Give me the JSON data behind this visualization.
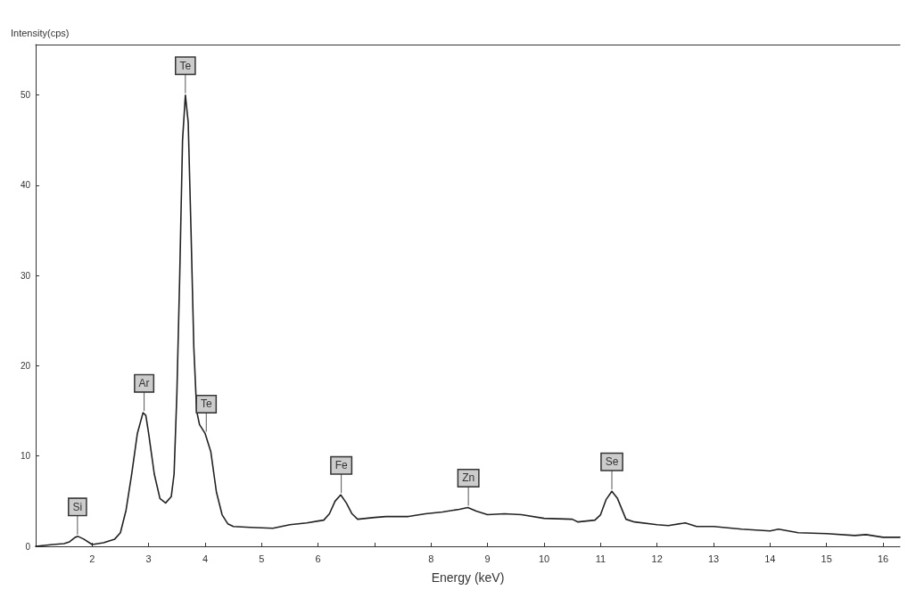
{
  "chart_data": {
    "type": "line",
    "xlabel": "Energy (keV)",
    "ylabel": "Intensity(cps)",
    "xlim": [
      1,
      16.3
    ],
    "xticks": [
      2,
      3,
      4,
      5,
      6,
      {
        "value": 7,
        "label": null
      },
      8,
      9,
      10,
      11,
      12,
      13,
      14,
      15,
      16
    ],
    "ylim": [
      0,
      55.6
    ],
    "yticks": [
      0,
      10,
      20,
      30,
      40,
      50
    ],
    "grid": false,
    "marker": "none",
    "line_style": "solid",
    "x": [
      1.0,
      1.3,
      1.5,
      1.6,
      1.7,
      1.75,
      1.85,
      2.0,
      2.2,
      2.4,
      2.5,
      2.6,
      2.7,
      2.8,
      2.9,
      2.95,
      3.0,
      3.1,
      3.2,
      3.3,
      3.4,
      3.45,
      3.5,
      3.55,
      3.6,
      3.65,
      3.7,
      3.75,
      3.8,
      3.85,
      3.9,
      4.0,
      4.1,
      4.2,
      4.3,
      4.4,
      4.5,
      4.8,
      5.2,
      5.5,
      5.8,
      6.0,
      6.1,
      6.2,
      6.3,
      6.4,
      6.5,
      6.6,
      6.7,
      7.0,
      7.2,
      7.6,
      7.9,
      8.2,
      8.5,
      8.65,
      8.8,
      9.0,
      9.3,
      9.6,
      10.0,
      10.5,
      10.6,
      10.9,
      11.0,
      11.1,
      11.2,
      11.3,
      11.45,
      11.6,
      12.0,
      12.2,
      12.5,
      12.7,
      13.0,
      13.5,
      14.0,
      14.15,
      14.5,
      15.0,
      15.5,
      15.7,
      16.0,
      16.3
    ],
    "series": [
      {
        "color": "#222222",
        "values": [
          0,
          0.2,
          0.3,
          0.5,
          1.0,
          1.1,
          0.8,
          0.2,
          0.4,
          0.8,
          1.5,
          4,
          8,
          12.5,
          14.8,
          14.5,
          12.5,
          8,
          5.3,
          4.8,
          5.5,
          8,
          17,
          30,
          45,
          50,
          47,
          35,
          22,
          15,
          13.5,
          12.5,
          10.5,
          6,
          3.5,
          2.5,
          2.2,
          2.1,
          2.0,
          2.4,
          2.6,
          2.8,
          2.9,
          3.6,
          5,
          5.7,
          4.8,
          3.6,
          3.0,
          3.2,
          3.3,
          3.3,
          3.6,
          3.8,
          4.1,
          4.3,
          3.9,
          3.5,
          3.6,
          3.5,
          3.1,
          3.0,
          2.7,
          2.9,
          3.5,
          5.2,
          6.1,
          5.3,
          3.0,
          2.7,
          2.4,
          2.3,
          2.6,
          2.2,
          2.2,
          1.9,
          1.7,
          1.9,
          1.5,
          1.4,
          1.2,
          1.3,
          1.0,
          1.0
        ]
      }
    ],
    "annotations": [
      {
        "text": "Si",
        "x": 1.74,
        "y": 1.1
      },
      {
        "text": "Ar",
        "x": 2.92,
        "y": 14.8
      },
      {
        "text": "Te",
        "x": 3.65,
        "y": 50
      },
      {
        "text": "Te",
        "x": 4.02,
        "y": 12.5
      },
      {
        "text": "Fe",
        "x": 6.41,
        "y": 5.7
      },
      {
        "text": "Zn",
        "x": 8.66,
        "y": 4.3
      },
      {
        "text": "Se",
        "x": 11.2,
        "y": 6.1
      }
    ]
  }
}
